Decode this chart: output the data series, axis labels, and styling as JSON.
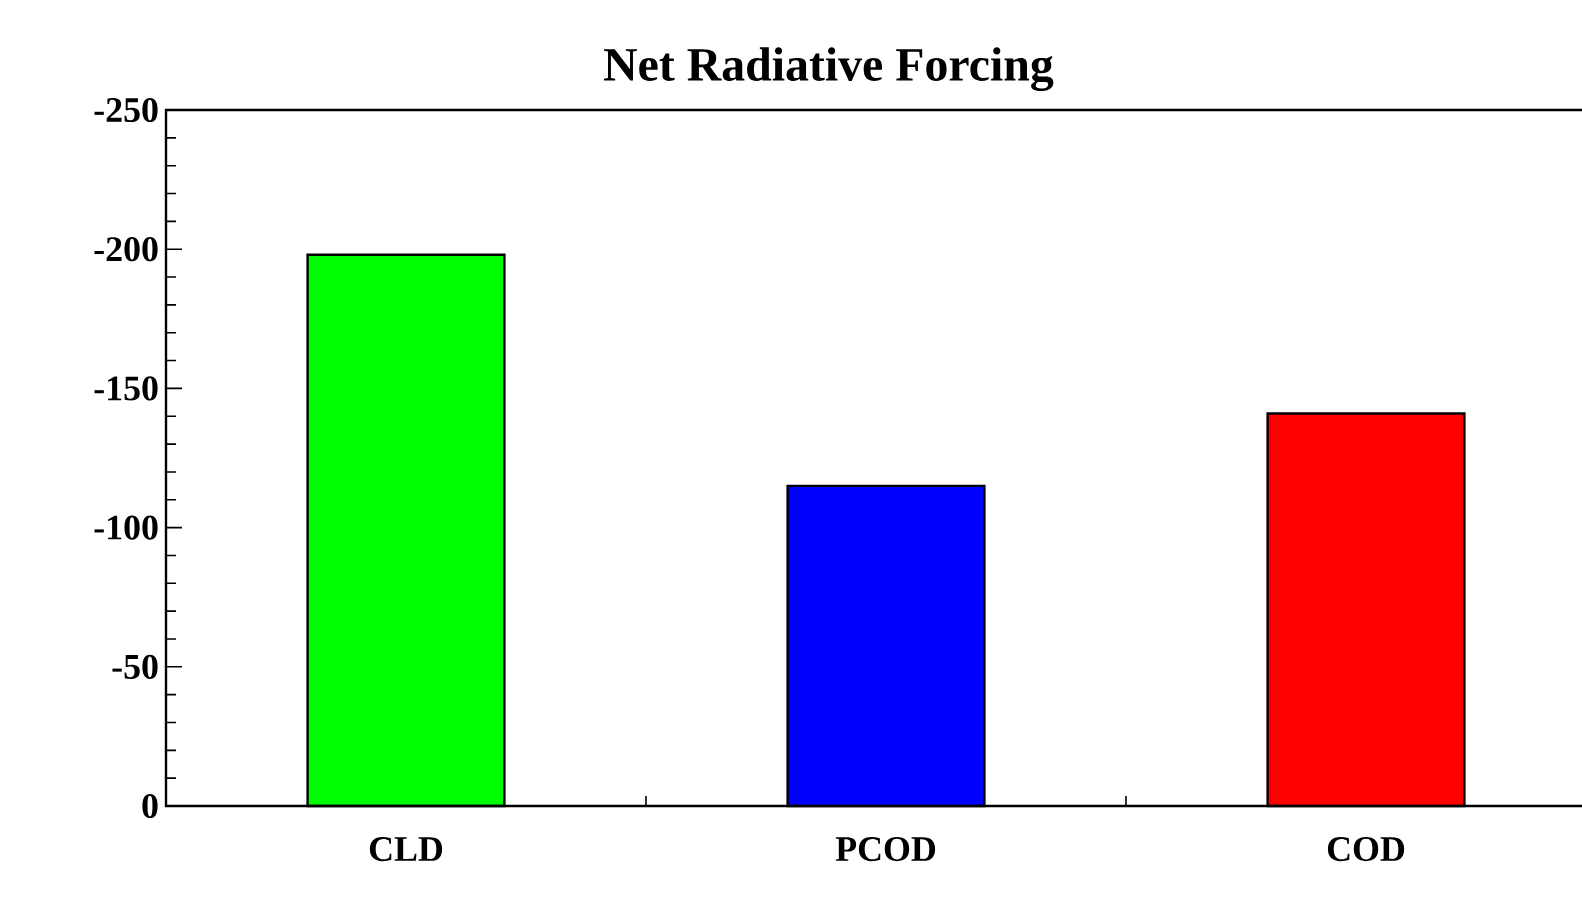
{
  "chart_data": {
    "type": "bar",
    "title": "Net Radiative Forcing",
    "categories": [
      "CLD",
      "PCOD",
      "COD"
    ],
    "values": [
      -198,
      -115,
      -141
    ],
    "colors": [
      "#00ff00",
      "#0000ff",
      "#ff0000"
    ],
    "ylim": [
      0,
      -250
    ],
    "yticks": [
      -250,
      -200,
      -150,
      -100,
      -50,
      0
    ]
  }
}
